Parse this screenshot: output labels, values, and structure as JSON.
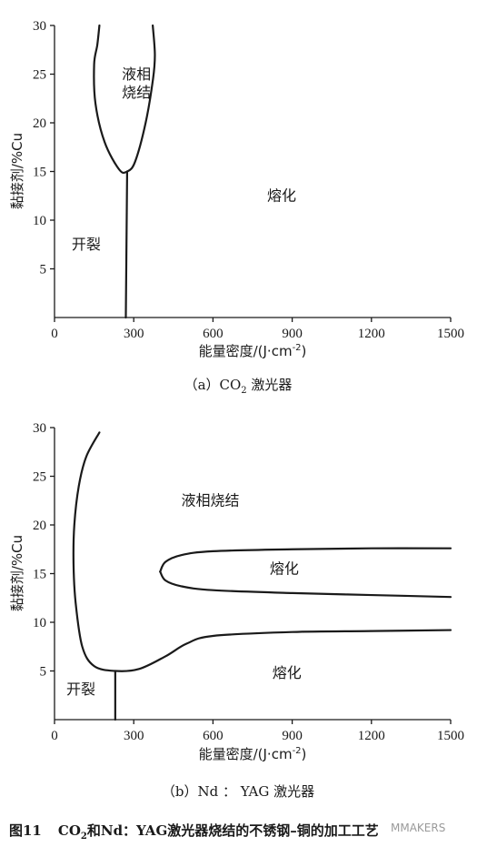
{
  "figure_caption": {
    "number": "图11",
    "pre": "CO",
    "sub": "2",
    "post": "和Nd：YAG激光器烧结的不锈钢–铜的加工工艺"
  },
  "watermark": "MMAKERS",
  "chart_data": [
    {
      "type": "line",
      "subtitle_pre": "（a）CO",
      "subtitle_sub": "2",
      "subtitle_post": " 激光器",
      "xlabel": "能量密度/(J·cm",
      "xlabel_sup": "-2",
      "xlabel_close": ")",
      "ylabel": "黏接剂/%Cu",
      "xlim": [
        0,
        1500
      ],
      "ylim": [
        0,
        30
      ],
      "xticks": [
        0,
        300,
        600,
        900,
        1200,
        1500
      ],
      "xtick_labels": [
        "0",
        "300",
        "600",
        "900",
        "1200",
        "1500"
      ],
      "yticks": [
        5,
        10,
        15,
        20,
        25,
        30
      ],
      "ytick_labels": [
        "5",
        "10",
        "15",
        "20",
        "25",
        "30"
      ],
      "regions": [
        {
          "label_lines": [
            "液相",
            "烧结"
          ],
          "x": 310,
          "y": 24.5
        },
        {
          "label_lines": [
            "熔化"
          ],
          "x": 860,
          "y": 12.0
        },
        {
          "label_lines": [
            "开裂"
          ],
          "x": 120,
          "y": 7.0
        }
      ],
      "series": [
        {
          "id": "boundary-a",
          "points": [
            [
              170,
              30
            ],
            [
              162,
              28
            ],
            [
              150,
              26
            ],
            [
              155,
              22
            ],
            [
              190,
              18
            ],
            [
              245,
              15.2
            ],
            [
              275,
              15
            ],
            [
              305,
              16
            ],
            [
              345,
              20
            ],
            [
              373,
              24.5
            ],
            [
              380,
              27
            ],
            [
              372,
              30
            ]
          ]
        },
        {
          "id": "vertical-a",
          "points": [
            [
              275,
              15
            ],
            [
              270,
              0
            ]
          ]
        }
      ]
    },
    {
      "type": "line",
      "subtitle_pre": "（b）Nd ： YAG 激光器",
      "subtitle_sub": "",
      "subtitle_post": "",
      "xlabel": "能量密度/(J·cm",
      "xlabel_sup": "-2",
      "xlabel_close": ")",
      "ylabel": "黏接剂/%Cu",
      "xlim": [
        0,
        1500
      ],
      "ylim": [
        0,
        30
      ],
      "xticks": [
        0,
        300,
        600,
        900,
        1200,
        1500
      ],
      "xtick_labels": [
        "0",
        "300",
        "600",
        "900",
        "1200",
        "1500"
      ],
      "yticks": [
        5,
        10,
        15,
        20,
        25,
        30
      ],
      "ytick_labels": [
        "5",
        "10",
        "15",
        "20",
        "25",
        "30"
      ],
      "regions": [
        {
          "label_lines": [
            "液相烧结"
          ],
          "x": 590,
          "y": 22.0
        },
        {
          "label_lines": [
            "熔化"
          ],
          "x": 870,
          "y": 15.0
        },
        {
          "label_lines": [
            "熔化"
          ],
          "x": 880,
          "y": 4.3
        },
        {
          "label_lines": [
            "开裂"
          ],
          "x": 100,
          "y": 2.6
        }
      ],
      "series": [
        {
          "id": "boundary-b",
          "points": [
            [
              170,
              29.5
            ],
            [
              120,
              27
            ],
            [
              92,
              24
            ],
            [
              75,
              20
            ],
            [
              72,
              16
            ],
            [
              80,
              12
            ],
            [
              105,
              7.5
            ],
            [
              150,
              5.5
            ],
            [
              230,
              5
            ],
            [
              320,
              5.2
            ],
            [
              420,
              6.5
            ],
            [
              500,
              7.8
            ],
            [
              600,
              8.6
            ],
            [
              900,
              9.0
            ],
            [
              1200,
              9.1
            ],
            [
              1500,
              9.2
            ]
          ]
        },
        {
          "id": "melt-lobe-upper",
          "points": [
            [
              400,
              15.2
            ],
            [
              420,
              16.2
            ],
            [
              480,
              16.9
            ],
            [
              600,
              17.3
            ],
            [
              900,
              17.5
            ],
            [
              1200,
              17.6
            ],
            [
              1500,
              17.6
            ]
          ]
        },
        {
          "id": "melt-lobe-lower",
          "points": [
            [
              400,
              15.2
            ],
            [
              420,
              14.3
            ],
            [
              480,
              13.7
            ],
            [
              600,
              13.3
            ],
            [
              900,
              13.0
            ],
            [
              1200,
              12.8
            ],
            [
              1500,
              12.6
            ]
          ]
        },
        {
          "id": "vertical-b",
          "points": [
            [
              230,
              5
            ],
            [
              230,
              0
            ]
          ]
        }
      ]
    }
  ]
}
